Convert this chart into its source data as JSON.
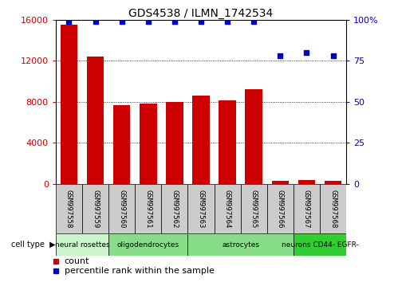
{
  "title": "GDS4538 / ILMN_1742534",
  "samples": [
    "GSM997558",
    "GSM997559",
    "GSM997560",
    "GSM997561",
    "GSM997562",
    "GSM997563",
    "GSM997564",
    "GSM997565",
    "GSM997566",
    "GSM997567",
    "GSM997568"
  ],
  "counts": [
    15500,
    12400,
    7700,
    7800,
    8000,
    8600,
    8100,
    9200,
    300,
    350,
    280
  ],
  "percentile_ranks": [
    99,
    99,
    99,
    99,
    99,
    99,
    99,
    99,
    78,
    80,
    78
  ],
  "ylim_left": [
    0,
    16000
  ],
  "ylim_right": [
    0,
    100
  ],
  "yticks_left": [
    0,
    4000,
    8000,
    12000,
    16000
  ],
  "ytick_labels_left": [
    "0",
    "4000",
    "8000",
    "12000",
    "16000"
  ],
  "yticks_right": [
    0,
    25,
    50,
    75,
    100
  ],
  "ytick_labels_right": [
    "0",
    "25",
    "50",
    "75",
    "100%"
  ],
  "bar_color": "#cc0000",
  "dot_color": "#0000cc",
  "cell_types": [
    {
      "label": "neural rosettes",
      "start": 0,
      "end": 2,
      "color": "#ccf5cc"
    },
    {
      "label": "oligodendrocytes",
      "start": 2,
      "end": 5,
      "color": "#88dd88"
    },
    {
      "label": "astrocytes",
      "start": 5,
      "end": 9,
      "color": "#88dd88"
    },
    {
      "label": "neurons CD44- EGFR-",
      "start": 9,
      "end": 11,
      "color": "#33cc33"
    }
  ],
  "legend_count_label": "count",
  "legend_pct_label": "percentile rank within the sample"
}
